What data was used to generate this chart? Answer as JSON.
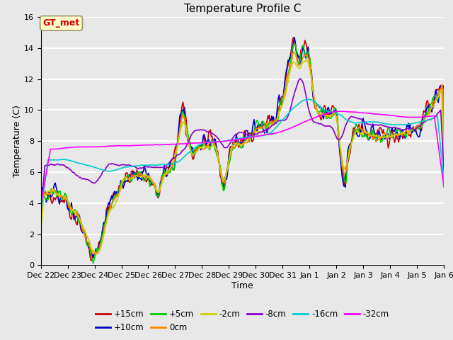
{
  "title": "Temperature Profile C",
  "xlabel": "Time",
  "ylabel": "Temperature (C)",
  "ylim": [
    0,
    16
  ],
  "yticks": [
    0,
    2,
    4,
    6,
    8,
    10,
    12,
    14,
    16
  ],
  "fig_bg": "#e8e8e8",
  "plot_bg": "#e8e8e8",
  "grid_color": "#ffffff",
  "series_labels": [
    "+15cm",
    "+10cm",
    "+5cm",
    "0cm",
    "-2cm",
    "-8cm",
    "-16cm",
    "-32cm"
  ],
  "series_colors": [
    "#cc0000",
    "#0000cc",
    "#00cc00",
    "#ff8800",
    "#cccc00",
    "#8800cc",
    "#00cccc",
    "#ff00ff"
  ],
  "xtick_labels": [
    "Dec 22",
    "Dec 23",
    "Dec 24",
    "Dec 25",
    "Dec 26",
    "Dec 27",
    "Dec 28",
    "Dec 29",
    "Dec 30",
    "Dec 31",
    "Jan 1",
    "Jan 2",
    "Jan 3",
    "Jan 4",
    "Jan 5",
    "Jan 6"
  ],
  "annot_text": "GT_met",
  "annot_color": "#cc0000",
  "annot_bg": "#ffffcc",
  "annot_edge": "#999966"
}
